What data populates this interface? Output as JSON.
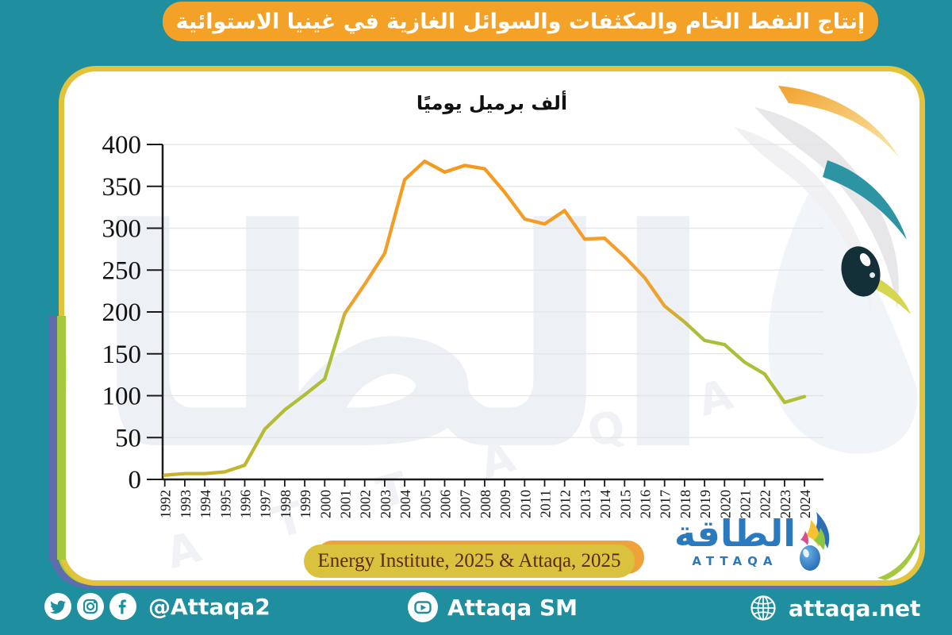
{
  "title_banner": {
    "text": "إنتاج النفط الخام والمكثفات والسوائل الغازية في غينيا الاستوائية"
  },
  "chart_data": {
    "type": "line",
    "title": "ألف برميل يوميًا",
    "xlabel": "",
    "ylabel": "ألف برميل يوميًا",
    "ylim": [
      0,
      400
    ],
    "y_ticks": [
      0,
      50,
      100,
      150,
      200,
      250,
      300,
      350,
      400
    ],
    "grid": "horizontal",
    "legend": "none",
    "categories": [
      "1992",
      "1993",
      "1994",
      "1995",
      "1996",
      "1997",
      "1998",
      "1999",
      "2000",
      "2001",
      "2002",
      "2003",
      "2004",
      "2005",
      "2006",
      "2007",
      "2008",
      "2009",
      "2010",
      "2011",
      "2012",
      "2013",
      "2014",
      "2015",
      "2016",
      "2017",
      "2018",
      "2019",
      "2020",
      "2021",
      "2022",
      "2023",
      "2024"
    ],
    "values": [
      5,
      7,
      7,
      9,
      17,
      60,
      83,
      101,
      120,
      198,
      233,
      270,
      358,
      380,
      367,
      375,
      371,
      343,
      311,
      305,
      321,
      287,
      288,
      266,
      241,
      207,
      188,
      166,
      161,
      140,
      126,
      92,
      99
    ],
    "line_gradient_stops": [
      {
        "offset": 0.0,
        "color": "#f5991c"
      },
      {
        "offset": 0.47,
        "color": "#f1a130"
      },
      {
        "offset": 0.56,
        "color": "#a7c03c"
      },
      {
        "offset": 0.88,
        "color": "#b7bc33"
      },
      {
        "offset": 1.0,
        "color": "#cbb12b"
      }
    ]
  },
  "source_pill": {
    "text": "Energy Institute, 2025 & Attaqa, 2025"
  },
  "logo": {
    "arabic": "الطاقة",
    "latin": "ATTAQA",
    "icon": "attaqa-flame-drop-icon"
  },
  "watermark": {
    "arabic": "الطاقة",
    "latin": "A T T A Q A"
  },
  "footer": {
    "left": {
      "icons": [
        "twitter-icon",
        "instagram-icon",
        "facebook-icon"
      ],
      "handle": "@Attaqa2"
    },
    "center": {
      "icon": "youtube-icon",
      "label": "Attaqa SM"
    },
    "right": {
      "icon": "globe-icon",
      "label": "attaqa.net"
    }
  },
  "colors": {
    "background_teal": "#1f8e9e",
    "banner_orange": "#f4a127",
    "card_border_gold": "#e3c33b",
    "accent_green": "#a4c93c",
    "accent_purple": "#5f6cae",
    "source_pill": "#d9c23d",
    "source_pill_back": "#efa23a",
    "source_text": "#5a291b",
    "logo_blue": "#2b7abf",
    "axis_black": "#1a1a1a",
    "grid_gray": "#e4e4e4"
  }
}
